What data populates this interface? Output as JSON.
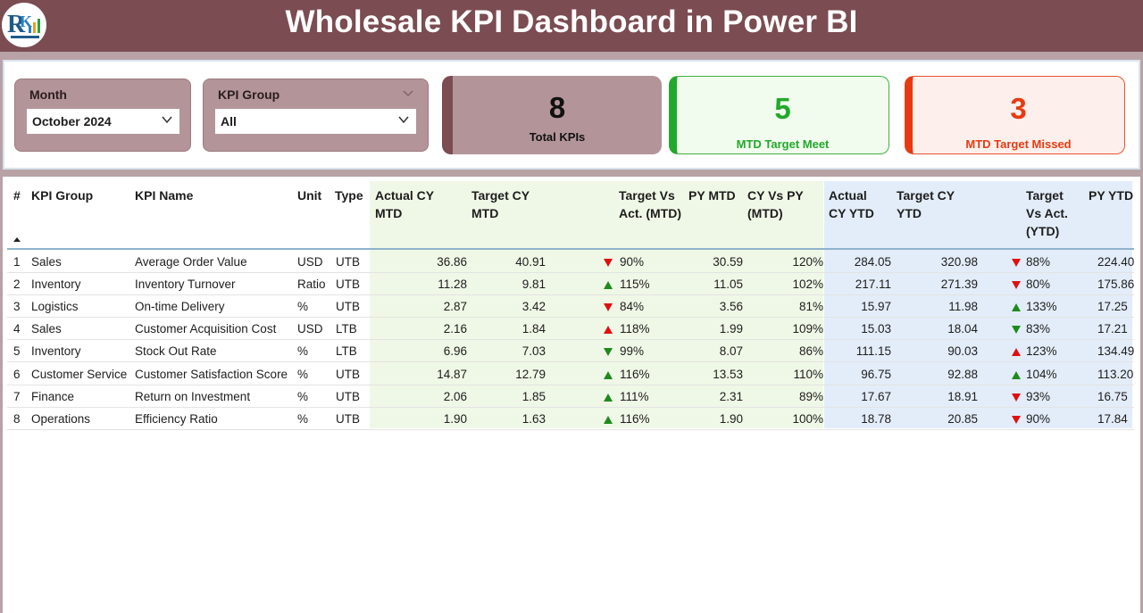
{
  "header": {
    "title": "Wholesale KPI Dashboard in Power BI",
    "logo_icon": "company-logo"
  },
  "slicers": {
    "month": {
      "label": "Month",
      "value": "October 2024"
    },
    "kpi_group": {
      "label": "KPI Group",
      "value": "All"
    }
  },
  "cards": {
    "total": {
      "value": "8",
      "label": "Total KPIs"
    },
    "meet": {
      "value": "5",
      "label": "MTD Target Meet"
    },
    "missed": {
      "value": "3",
      "label": "MTD Target Missed"
    }
  },
  "colors": {
    "header": "#7b4c52",
    "accent_meet": "#22a82a",
    "accent_missed": "#e83a12",
    "mtd_shade": "#eff8e6",
    "ytd_shade": "#e3edf9"
  },
  "table": {
    "headers": {
      "num": "#",
      "group": "KPI Group",
      "name": "KPI Name",
      "unit": "Unit",
      "type": "Type",
      "actual_mtd": "Actual CY MTD",
      "target_mtd": "Target CY MTD",
      "tva_mtd": "Target Vs Act. (MTD)",
      "py_mtd": "PY MTD",
      "cypy_mtd": "CY Vs PY (MTD)",
      "actual_ytd": "Actual CY YTD",
      "target_ytd": "Target CY YTD",
      "tva_ytd": "Target Vs Act. (YTD)",
      "py_ytd": "PY YTD"
    },
    "rows": [
      {
        "num": "1",
        "group": "Sales",
        "name": "Average Order Value",
        "unit": "USD",
        "type": "UTB",
        "actual_mtd": "36.86",
        "target_mtd": "40.91",
        "mtd_icon": "down-red",
        "tva_mtd": "90%",
        "py_mtd": "30.59",
        "cypy_mtd": "120%",
        "actual_ytd": "284.05",
        "target_ytd": "320.98",
        "ytd_icon": "down-red",
        "tva_ytd": "88%",
        "py_ytd": "224.40"
      },
      {
        "num": "2",
        "group": "Inventory",
        "name": "Inventory Turnover",
        "unit": "Ratio",
        "type": "UTB",
        "actual_mtd": "11.28",
        "target_mtd": "9.81",
        "mtd_icon": "up-green",
        "tva_mtd": "115%",
        "py_mtd": "11.05",
        "cypy_mtd": "102%",
        "actual_ytd": "217.11",
        "target_ytd": "271.39",
        "ytd_icon": "down-red",
        "tva_ytd": "80%",
        "py_ytd": "175.86"
      },
      {
        "num": "3",
        "group": "Logistics",
        "name": "On-time Delivery",
        "unit": "%",
        "type": "UTB",
        "actual_mtd": "2.87",
        "target_mtd": "3.42",
        "mtd_icon": "down-red",
        "tva_mtd": "84%",
        "py_mtd": "3.56",
        "cypy_mtd": "81%",
        "actual_ytd": "15.97",
        "target_ytd": "11.98",
        "ytd_icon": "up-green",
        "tva_ytd": "133%",
        "py_ytd": "17.25"
      },
      {
        "num": "4",
        "group": "Sales",
        "name": "Customer Acquisition Cost",
        "unit": "USD",
        "type": "LTB",
        "actual_mtd": "2.16",
        "target_mtd": "1.84",
        "mtd_icon": "up-red",
        "tva_mtd": "118%",
        "py_mtd": "1.99",
        "cypy_mtd": "109%",
        "actual_ytd": "15.03",
        "target_ytd": "18.04",
        "ytd_icon": "down-green",
        "tva_ytd": "83%",
        "py_ytd": "17.21"
      },
      {
        "num": "5",
        "group": "Inventory",
        "name": "Stock Out Rate",
        "unit": "%",
        "type": "LTB",
        "actual_mtd": "6.96",
        "target_mtd": "7.03",
        "mtd_icon": "down-green",
        "tva_mtd": "99%",
        "py_mtd": "8.07",
        "cypy_mtd": "86%",
        "actual_ytd": "111.15",
        "target_ytd": "90.03",
        "ytd_icon": "up-red",
        "tva_ytd": "123%",
        "py_ytd": "134.49"
      },
      {
        "num": "6",
        "group": "Customer Service",
        "name": "Customer Satisfaction Score",
        "unit": "%",
        "type": "UTB",
        "actual_mtd": "14.87",
        "target_mtd": "12.79",
        "mtd_icon": "up-green",
        "tva_mtd": "116%",
        "py_mtd": "13.53",
        "cypy_mtd": "110%",
        "actual_ytd": "96.75",
        "target_ytd": "92.88",
        "ytd_icon": "up-green",
        "tva_ytd": "104%",
        "py_ytd": "113.20"
      },
      {
        "num": "7",
        "group": "Finance",
        "name": "Return on Investment",
        "unit": "%",
        "type": "UTB",
        "actual_mtd": "2.06",
        "target_mtd": "1.85",
        "mtd_icon": "up-green",
        "tva_mtd": "111%",
        "py_mtd": "2.31",
        "cypy_mtd": "89%",
        "actual_ytd": "17.67",
        "target_ytd": "18.91",
        "ytd_icon": "down-red",
        "tva_ytd": "93%",
        "py_ytd": "16.75"
      },
      {
        "num": "8",
        "group": "Operations",
        "name": "Efficiency Ratio",
        "unit": "%",
        "type": "UTB",
        "actual_mtd": "1.90",
        "target_mtd": "1.63",
        "mtd_icon": "up-green",
        "tva_mtd": "116%",
        "py_mtd": "1.90",
        "cypy_mtd": "100%",
        "actual_ytd": "18.78",
        "target_ytd": "20.85",
        "ytd_icon": "down-red",
        "tva_ytd": "90%",
        "py_ytd": "17.84"
      }
    ]
  }
}
